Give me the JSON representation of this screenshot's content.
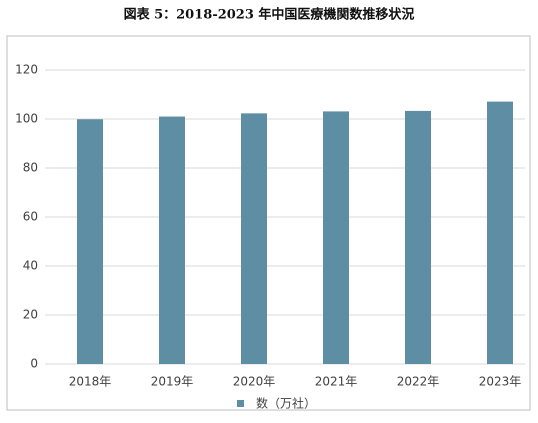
{
  "chart_data": {
    "type": "bar",
    "title": "図表 5：2018-2023 年中国医療機関数推移状況",
    "categories": [
      "2018年",
      "2019年",
      "2020年",
      "2021年",
      "2022年",
      "2023年"
    ],
    "series": [
      {
        "name": "数（万社）",
        "color": "#5e8ea3",
        "values": [
          99.9,
          101.0,
          102.3,
          103.1,
          103.3,
          107.1
        ]
      }
    ],
    "ylim": [
      0,
      120
    ],
    "yticks": [
      0,
      20,
      40,
      60,
      80,
      100,
      120
    ],
    "grid": true,
    "legend": "bottom"
  }
}
